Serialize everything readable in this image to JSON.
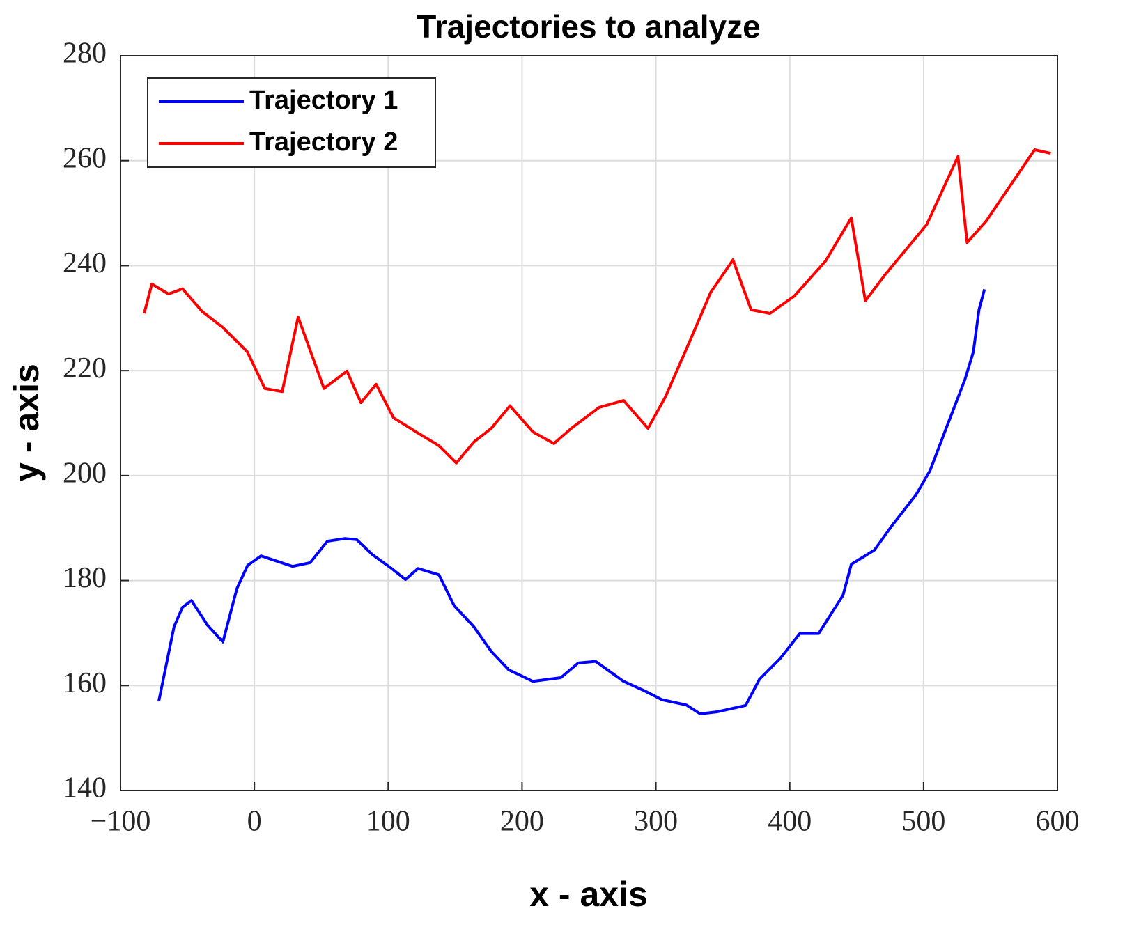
{
  "chart_data": {
    "type": "line",
    "title": "Trajectories to analyze",
    "xlabel": "x - axis",
    "ylabel": "y - axis",
    "xlim": [
      -100,
      600
    ],
    "xticks": [
      {
        "value": -100,
        "label": "−100"
      },
      0,
      100,
      200,
      300,
      400,
      500,
      600
    ],
    "ylim": [
      140,
      280
    ],
    "yticks": [
      140,
      160,
      180,
      200,
      220,
      240,
      260,
      280
    ],
    "grid": true,
    "legend": "upper left",
    "series": [
      {
        "name": "Trajectory 1",
        "color": "#0000ff",
        "x": [
          -71.4,
          -60,
          -53.7,
          -47,
          -35,
          -23.5,
          -13,
          -5,
          5,
          15.6,
          28.6,
          41.6,
          54.6,
          67.6,
          76.5,
          88.4,
          101.5,
          112.9,
          122.3,
          137.9,
          149.3,
          164,
          177,
          190,
          208,
          229,
          242,
          255,
          275.8,
          291.5,
          304.5,
          322.7,
          333.1,
          346,
          367,
          377.4,
          393,
          407.5,
          421.6,
          439.8,
          446,
          463.2,
          476.2,
          494.5,
          504.9,
          517.9,
          530.9,
          537.2,
          541.4,
          545.5
        ],
        "values": [
          157.0,
          171.2,
          174.9,
          176.2,
          171.5,
          168.3,
          178.5,
          182.9,
          184.7,
          183.8,
          182.7,
          183.4,
          187.5,
          188.0,
          187.8,
          184.9,
          182.5,
          180.2,
          182.3,
          181.1,
          175.2,
          171.2,
          166.5,
          163.0,
          160.8,
          161.5,
          164.3,
          164.6,
          160.8,
          159.0,
          157.3,
          156.3,
          154.6,
          155.0,
          156.2,
          161.2,
          165.2,
          169.9,
          169.9,
          177.2,
          183.1,
          185.8,
          190.4,
          196.4,
          201.0,
          209.7,
          218.3,
          223.6,
          231.6,
          235.5
        ]
      },
      {
        "name": "Trajectory 2",
        "color": "#ff0000",
        "x": [
          -82.3,
          -76.6,
          -64.1,
          -53.7,
          -39.1,
          -23.5,
          -5.3,
          7.8,
          20.8,
          32.7,
          52,
          69.2,
          79.6,
          91,
          104,
          122.3,
          137.9,
          150.9,
          164,
          177,
          191,
          208.2,
          223.8,
          236.8,
          257.6,
          275.9,
          294.1,
          307.1,
          325.3,
          340.9,
          357.6,
          371.1,
          385.2,
          403.4,
          426.8,
          446,
          456.5,
          471,
          502.3,
          525.7,
          532.5,
          546.5,
          583,
          595
        ],
        "values": [
          230.9,
          236.5,
          234.6,
          235.6,
          231.3,
          228.2,
          223.6,
          216.6,
          216.0,
          230.2,
          216.6,
          219.9,
          213.9,
          217.4,
          211.0,
          208.1,
          205.7,
          202.4,
          206.4,
          209.0,
          213.3,
          208.3,
          206.1,
          209.0,
          213.0,
          214.3,
          209.0,
          215.0,
          225.6,
          234.9,
          241.1,
          231.6,
          230.9,
          234.2,
          240.9,
          249.1,
          233.3,
          238.2,
          247.8,
          260.8,
          244.4,
          248.4,
          262.1,
          261.4
        ]
      }
    ]
  }
}
